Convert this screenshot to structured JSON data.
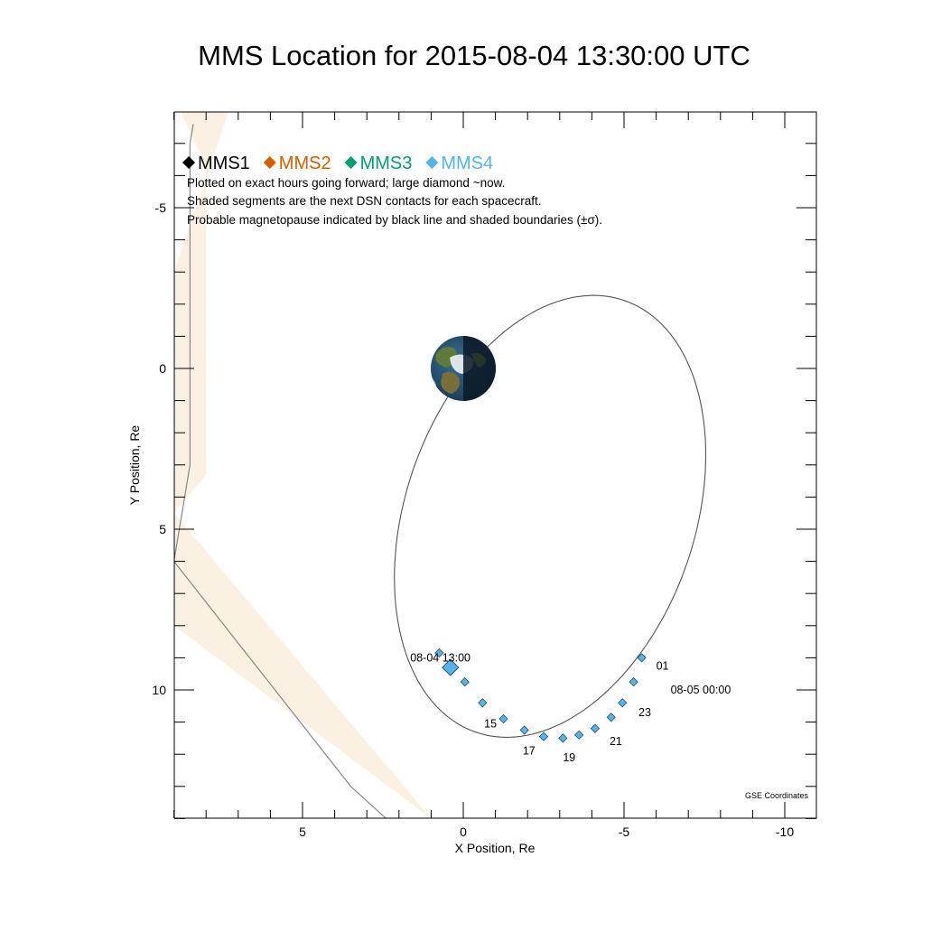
{
  "chart_data": {
    "type": "scatter",
    "title": "MMS Location for 2015-08-04 13:30:00 UTC",
    "xlabel": "X Position, Re",
    "ylabel": "Y Position, Re",
    "xlim": [
      9,
      -11
    ],
    "ylim": [
      -8,
      14
    ],
    "x_ticks": [
      5,
      0,
      -5,
      -10
    ],
    "x_tick_labels": [
      "5",
      "0",
      "-5",
      "-10"
    ],
    "y_ticks": [
      -5,
      0,
      5,
      10
    ],
    "y_tick_labels": [
      "-5",
      "0",
      "5",
      "10"
    ],
    "grid": false,
    "legend_placement": "top-left",
    "legend": [
      {
        "name": "MMS1",
        "color": "#000000"
      },
      {
        "name": "MMS2",
        "color": "#d55e00"
      },
      {
        "name": "MMS3",
        "color": "#009e73"
      },
      {
        "name": "MMS4",
        "color": "#56b4e9"
      }
    ],
    "notes": [
      "Plotted on exact hours going forward; large diamond ~now.",
      "Shaded segments are the next DSN contacts for each spacecraft.",
      "Probable magnetopause indicated by black line and shaded boundaries (±σ)."
    ],
    "coordinate_system": "GSE Coordinates",
    "orbit": {
      "center": [
        -2.7,
        4.6
      ],
      "semi_major": 7.1,
      "semi_minor": 4.5,
      "rotation_deg": 71,
      "color": "#555555"
    },
    "earth": {
      "x": 0,
      "y": 0,
      "radius": 1
    },
    "magnetopause": {
      "color": "#888888",
      "band_color": "#fbf1e3",
      "nominal": [
        [
          8.4,
          -7.6
        ],
        [
          8.5,
          -7.0
        ],
        [
          8.5,
          3.0
        ],
        [
          9.0,
          6.0
        ],
        [
          3.5,
          13.0
        ],
        [
          2.4,
          14.0
        ]
      ],
      "inner": [
        [
          9.0,
          -8.0
        ],
        [
          8.8,
          -8.0
        ],
        [
          8.0,
          -6.3
        ],
        [
          8.0,
          3.3
        ],
        [
          9.0,
          4.5
        ]
      ],
      "outer": [
        [
          7.3,
          -8.0
        ],
        [
          9.0,
          -3.0
        ],
        [
          9.0,
          8.0
        ],
        [
          1.0,
          14.0
        ]
      ]
    },
    "hourly_positions": [
      {
        "x": 0.75,
        "y": 8.85
      },
      {
        "x": -0.05,
        "y": 9.75
      },
      {
        "x": -0.6,
        "y": 10.4
      },
      {
        "x": -1.25,
        "y": 10.9
      },
      {
        "x": -1.9,
        "y": 11.25
      },
      {
        "x": -2.5,
        "y": 11.45
      },
      {
        "x": -3.1,
        "y": 11.5
      },
      {
        "x": -3.6,
        "y": 11.4
      },
      {
        "x": -4.1,
        "y": 11.2
      },
      {
        "x": -4.6,
        "y": 10.85
      },
      {
        "x": -4.95,
        "y": 10.4
      },
      {
        "x": -5.3,
        "y": 9.75
      },
      {
        "x": -5.55,
        "y": 9.0
      }
    ],
    "current_position": {
      "x": 0.4,
      "y": 9.3
    },
    "series": [
      {
        "name": "MMS1",
        "color": "#000000"
      },
      {
        "name": "MMS2",
        "color": "#d55e00"
      },
      {
        "name": "MMS3",
        "color": "#009e73"
      },
      {
        "name": "MMS4",
        "color": "#56b4e9"
      }
    ],
    "annotations": [
      {
        "text": "08-04 13:00",
        "x": 1.65,
        "y": 9.0
      },
      {
        "text": "15",
        "x": -0.65,
        "y": 11.05
      },
      {
        "text": "17",
        "x": -1.85,
        "y": 11.9
      },
      {
        "text": "19",
        "x": -3.1,
        "y": 12.1
      },
      {
        "text": "21",
        "x": -4.55,
        "y": 11.6
      },
      {
        "text": "23",
        "x": -5.45,
        "y": 10.7
      },
      {
        "text": "08-05 00:00",
        "x": -6.45,
        "y": 10.0
      },
      {
        "text": "01",
        "x": -6.0,
        "y": 9.25
      }
    ]
  }
}
